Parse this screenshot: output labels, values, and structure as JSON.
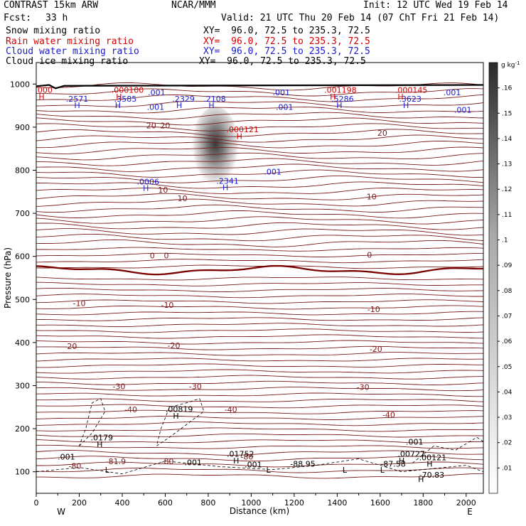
{
  "header": {
    "model": "CONTRAST 15km ARW",
    "center": "NCAR/MMM",
    "init": "Init: 12 UTC Wed 19 Feb 14",
    "fcst_label": "Fcst:",
    "fcst_value": "33 h",
    "valid": "Valid: 21 UTC Thu 20 Feb 14 (07 ChT Fri 21 Feb 14)"
  },
  "fields": [
    {
      "name": "Snow mixing ratio",
      "xy": "XY=  96.0, 72.5 to 235.3, 72.5",
      "color": "#000000"
    },
    {
      "name": "Rain water mixing ratio",
      "xy": "XY=  96.0, 72.5 to 235.3, 72.5",
      "color": "#d40000"
    },
    {
      "name": "Cloud water mixing ratio",
      "xy": "XY=  96.0, 72.5 to 235.3, 72.5",
      "color": "#1a1ad0"
    },
    {
      "name": "Cloud ice mixing ratio",
      "xy": "XY=  96.0, 72.5 to 235.3, 72.5",
      "color": "#000000"
    }
  ],
  "colors": {
    "temperature": "#7a1a1a",
    "zero_isotherm": "#7a0000",
    "cloud_water": "#1a1ad0",
    "rain": "#d40000",
    "ice": "#000000",
    "terrain": "#000000"
  },
  "chart_data": {
    "type": "cross-section",
    "xlabel": "Distance (km)",
    "ylabel": "Pressure (hPa)",
    "x_ticks": [
      0,
      200,
      400,
      600,
      800,
      1000,
      1200,
      1400,
      1600,
      1800,
      2000
    ],
    "y_ticks": [
      100,
      200,
      300,
      400,
      500,
      600,
      700,
      800,
      900,
      1000
    ],
    "xlim": [
      0,
      2080
    ],
    "ylim": [
      1050,
      50
    ],
    "left_end": "W",
    "right_end": "E",
    "colorbar": {
      "units": "g kg",
      "units_exp": "-1",
      "ticks": [
        ".01",
        ".02",
        ".03",
        ".04",
        ".05",
        ".06",
        ".07",
        ".08",
        ".09",
        ".1",
        ".11",
        ".12",
        ".13",
        ".14",
        ".15",
        ".16"
      ],
      "range": [
        0,
        0.17
      ]
    },
    "temperature_labels": [
      {
        "t": "-80",
        "x": 180,
        "p": 107
      },
      {
        "t": "-81.9",
        "x": 370,
        "p": 118
      },
      {
        "t": "-80",
        "x": 610,
        "p": 118
      },
      {
        "t": "-80",
        "x": 980,
        "p": 128
      },
      {
        "t": "-40",
        "x": 440,
        "p": 238
      },
      {
        "t": "-40",
        "x": 905,
        "p": 238
      },
      {
        "t": "-40",
        "x": 1640,
        "p": 226
      },
      {
        "t": "-30",
        "x": 385,
        "p": 292
      },
      {
        "t": "-30",
        "x": 740,
        "p": 292
      },
      {
        "t": "-30",
        "x": 1520,
        "p": 290
      },
      {
        "t": "-20",
        "x": 160,
        "p": 385
      },
      {
        "t": "-20",
        "x": 640,
        "p": 387
      },
      {
        "t": "-20",
        "x": 1580,
        "p": 378
      },
      {
        "t": "-10",
        "x": 200,
        "p": 485
      },
      {
        "t": "-10",
        "x": 610,
        "p": 481
      },
      {
        "t": "-10",
        "x": 1570,
        "p": 471
      },
      {
        "t": "0",
        "x": 540,
        "p": 595
      },
      {
        "t": "0",
        "x": 605,
        "p": 595
      },
      {
        "t": "0",
        "x": 1550,
        "p": 597
      },
      {
        "t": "10",
        "x": 590,
        "p": 748
      },
      {
        "t": "10",
        "x": 680,
        "p": 728
      },
      {
        "t": "10",
        "x": 1560,
        "p": 732
      },
      {
        "t": "20",
        "x": 535,
        "p": 897
      },
      {
        "t": "20",
        "x": 600,
        "p": 897
      },
      {
        "t": "20",
        "x": 1610,
        "p": 880
      }
    ],
    "ice_annotations": [
      {
        "t": ".001",
        "x": 140,
        "p": 128
      },
      {
        "t": ".001",
        "x": 730,
        "p": 115
      },
      {
        "t": ".001",
        "x": 1010,
        "p": 110
      },
      {
        "t": ".001",
        "x": 1760,
        "p": 163
      },
      {
        "t": "H",
        "x": 295,
        "p": 157
      },
      {
        "t": ".0179",
        "x": 305,
        "p": 173
      },
      {
        "t": "H",
        "x": 930,
        "p": 119
      },
      {
        "t": ".01752",
        "x": 950,
        "p": 135
      },
      {
        "t": "H",
        "x": 650,
        "p": 223
      },
      {
        "t": ".00819",
        "x": 665,
        "p": 239
      },
      {
        "t": "L",
        "x": 330,
        "p": 98
      },
      {
        "t": "L",
        "x": 1080,
        "p": 98
      },
      {
        "t": "-88.95",
        "x": 1240,
        "p": 112
      },
      {
        "t": "L",
        "x": 1435,
        "p": 98
      },
      {
        "t": "L",
        "x": 1610,
        "p": 98
      },
      {
        "t": "-87.58",
        "x": 1660,
        "p": 112
      },
      {
        "t": "H",
        "x": 1700,
        "p": 119
      },
      {
        "t": ".00727",
        "x": 1745,
        "p": 135
      },
      {
        "t": "H",
        "x": 1830,
        "p": 112
      },
      {
        "t": ".00121",
        "x": 1845,
        "p": 127
      },
      {
        "t": "H",
        "x": 1790,
        "p": 76
      },
      {
        "t": "-70.83",
        "x": 1840,
        "p": 86
      }
    ],
    "cloud_annotations": [
      {
        "t": "H",
        "x": 510,
        "p": 752
      },
      {
        "t": ".0006",
        "x": 520,
        "p": 767
      },
      {
        "t": "H",
        "x": 880,
        "p": 754
      },
      {
        "t": ".2341",
        "x": 890,
        "p": 769
      },
      {
        "t": ".001",
        "x": 1100,
        "p": 790
      },
      {
        "t": "H",
        "x": 190,
        "p": 944
      },
      {
        "t": ".2571",
        "x": 190,
        "p": 959
      },
      {
        "t": "H",
        "x": 380,
        "p": 944
      },
      {
        "t": ".3585",
        "x": 415,
        "p": 959
      },
      {
        "t": ".001",
        "x": 555,
        "p": 940
      },
      {
        "t": ".001",
        "x": 560,
        "p": 974
      },
      {
        "t": "H",
        "x": 665,
        "p": 944
      },
      {
        "t": ".2329",
        "x": 685,
        "p": 959
      },
      {
        "t": "H",
        "x": 815,
        "p": 944
      },
      {
        "t": ".2108",
        "x": 830,
        "p": 959
      },
      {
        "t": ".001",
        "x": 1155,
        "p": 940
      },
      {
        "t": ".001",
        "x": 1140,
        "p": 974
      },
      {
        "t": "H",
        "x": 1410,
        "p": 944
      },
      {
        "t": ".5286",
        "x": 1425,
        "p": 959
      },
      {
        "t": "H",
        "x": 1720,
        "p": 944
      },
      {
        "t": ".3623",
        "x": 1740,
        "p": 959
      },
      {
        "t": ".001",
        "x": 1985,
        "p": 934
      },
      {
        "t": ".001",
        "x": 1935,
        "p": 974
      }
    ],
    "rain_annotations": [
      {
        "t": "H",
        "x": 945,
        "p": 873
      },
      {
        "t": ".000121",
        "x": 960,
        "p": 888
      },
      {
        "t": "H",
        "x": 25,
        "p": 964
      },
      {
        "t": ".000",
        "x": 35,
        "p": 980
      },
      {
        "t": "H",
        "x": 385,
        "p": 964
      },
      {
        "t": ".000100",
        "x": 425,
        "p": 980
      },
      {
        "t": "H",
        "x": 1380,
        "p": 964
      },
      {
        "t": ".001198",
        "x": 1415,
        "p": 980
      },
      {
        "t": "H",
        "x": 1695,
        "p": 964
      },
      {
        "t": ".000145",
        "x": 1745,
        "p": 980
      }
    ]
  }
}
